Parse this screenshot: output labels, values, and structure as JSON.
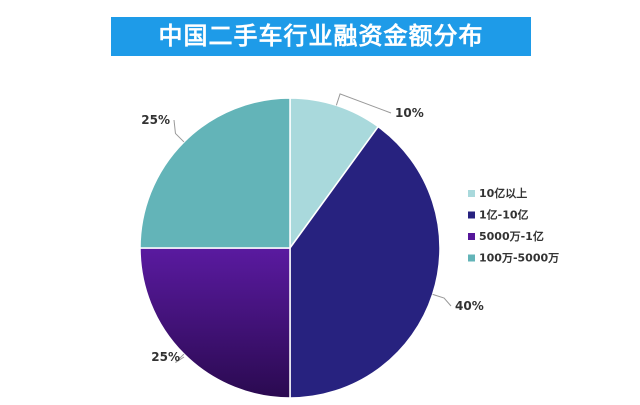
{
  "chart_data": {
    "type": "pie",
    "title": "中国二手车行业融资金额分布",
    "categories": [
      "10亿以上",
      "1亿-10亿",
      "5000万-1亿",
      "100万-5000万"
    ],
    "values": [
      10,
      40,
      25,
      25
    ],
    "data_labels": [
      "10%",
      "40%",
      "25%",
      "25%"
    ],
    "colors": [
      "#a9d9dc",
      "#27227f",
      "#55179a",
      "#63b4b8"
    ],
    "legend_position": "right",
    "start_angle": "top, clockwise"
  }
}
